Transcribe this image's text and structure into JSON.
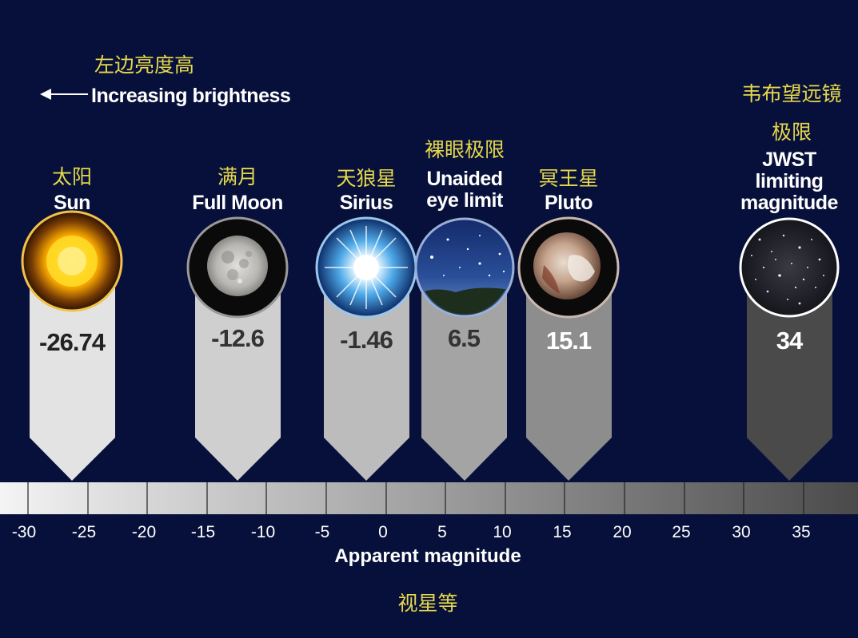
{
  "header": {
    "brightness_cn": "左边亮度高",
    "brightness_en": "Increasing brightness"
  },
  "objects": [
    {
      "cn": "太阳",
      "en": "Sun",
      "magnitude": "-26.74",
      "magnitude_value": -26.74,
      "icon": "sun-icon"
    },
    {
      "cn": "满月",
      "en": "Full Moon",
      "magnitude": "-12.6",
      "magnitude_value": -12.6,
      "icon": "moon-icon"
    },
    {
      "cn": "天狼星",
      "en": "Sirius",
      "magnitude": "-1.46",
      "magnitude_value": -1.46,
      "icon": "star-icon"
    },
    {
      "cn": "裸眼极限",
      "en": "Unaided eye limit",
      "magnitude": "6.5",
      "magnitude_value": 6.5,
      "icon": "night-sky-icon"
    },
    {
      "cn": "冥王星",
      "en": "Pluto",
      "magnitude": "15.1",
      "magnitude_value": 15.1,
      "icon": "pluto-icon"
    },
    {
      "cn": "韦布望远镜极限",
      "en": "JWST limiting magnitude",
      "magnitude": "34",
      "magnitude_value": 34,
      "icon": "star-field-icon"
    }
  ],
  "scale": {
    "ticks": [
      "-30",
      "-25",
      "-20",
      "-15",
      "-10",
      "-5",
      "0",
      "5",
      "10",
      "15",
      "20",
      "25",
      "30",
      "35"
    ],
    "label_en": "Apparent magnitude",
    "label_cn": "视星等"
  },
  "colors": {
    "background": "#07103a",
    "chinese_text": "#e6d84a",
    "english_text": "#ffffff"
  }
}
